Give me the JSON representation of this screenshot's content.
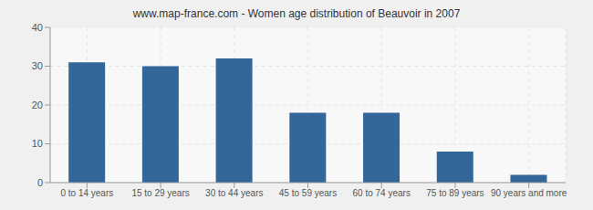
{
  "chart_data": {
    "type": "bar",
    "title": "www.map-france.com - Women age distribution of Beauvoir in 2007",
    "categories": [
      "0 to 14 years",
      "15 to 29 years",
      "30 to 44 years",
      "45 to 59 years",
      "60 to 74 years",
      "75 to 89 years",
      "90 years and more"
    ],
    "values": [
      31,
      30,
      32,
      18,
      18,
      8,
      2
    ],
    "color": "#336699",
    "ylim": [
      0,
      40
    ],
    "yticks": [
      0,
      10,
      20,
      30,
      40
    ],
    "grid": true
  }
}
